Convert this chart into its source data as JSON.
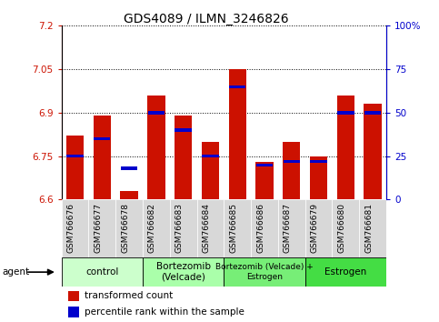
{
  "title": "GDS4089 / ILMN_3246826",
  "samples": [
    "GSM766676",
    "GSM766677",
    "GSM766678",
    "GSM766682",
    "GSM766683",
    "GSM766684",
    "GSM766685",
    "GSM766686",
    "GSM766687",
    "GSM766679",
    "GSM766680",
    "GSM766681"
  ],
  "transformed_counts": [
    6.82,
    6.89,
    6.63,
    6.96,
    6.89,
    6.8,
    7.05,
    6.73,
    6.8,
    6.75,
    6.96,
    6.93
  ],
  "percentile_ranks": [
    25,
    35,
    18,
    50,
    40,
    25,
    65,
    20,
    22,
    22,
    50,
    50
  ],
  "ylim_left": [
    6.6,
    7.2
  ],
  "ylim_right": [
    0,
    100
  ],
  "yticks_left": [
    6.6,
    6.75,
    6.9,
    7.05,
    7.2
  ],
  "yticks_right": [
    0,
    25,
    50,
    75,
    100
  ],
  "ytick_labels_left": [
    "6.6",
    "6.75",
    "6.9",
    "7.05",
    "7.2"
  ],
  "ytick_labels_right": [
    "0",
    "25",
    "50",
    "75",
    "100%"
  ],
  "bar_color": "#cc1100",
  "percentile_color": "#0000cc",
  "groups": [
    {
      "label": "control",
      "count": 3,
      "color": "#ccffcc"
    },
    {
      "label": "Bortezomib\n(Velcade)",
      "count": 3,
      "color": "#aaffaa"
    },
    {
      "label": "Bortezomib (Velcade) +\nEstrogen",
      "count": 3,
      "color": "#77ee77"
    },
    {
      "label": "Estrogen",
      "count": 3,
      "color": "#44dd44"
    }
  ],
  "agent_label": "agent",
  "legend_items": [
    {
      "label": "transformed count",
      "color": "#cc1100"
    },
    {
      "label": "percentile rank within the sample",
      "color": "#0000cc"
    }
  ],
  "left_axis_color": "#cc1100",
  "right_axis_color": "#0000cc",
  "bar_width": 0.65,
  "base_value": 6.6,
  "tick_bg_color": "#d8d8d8"
}
